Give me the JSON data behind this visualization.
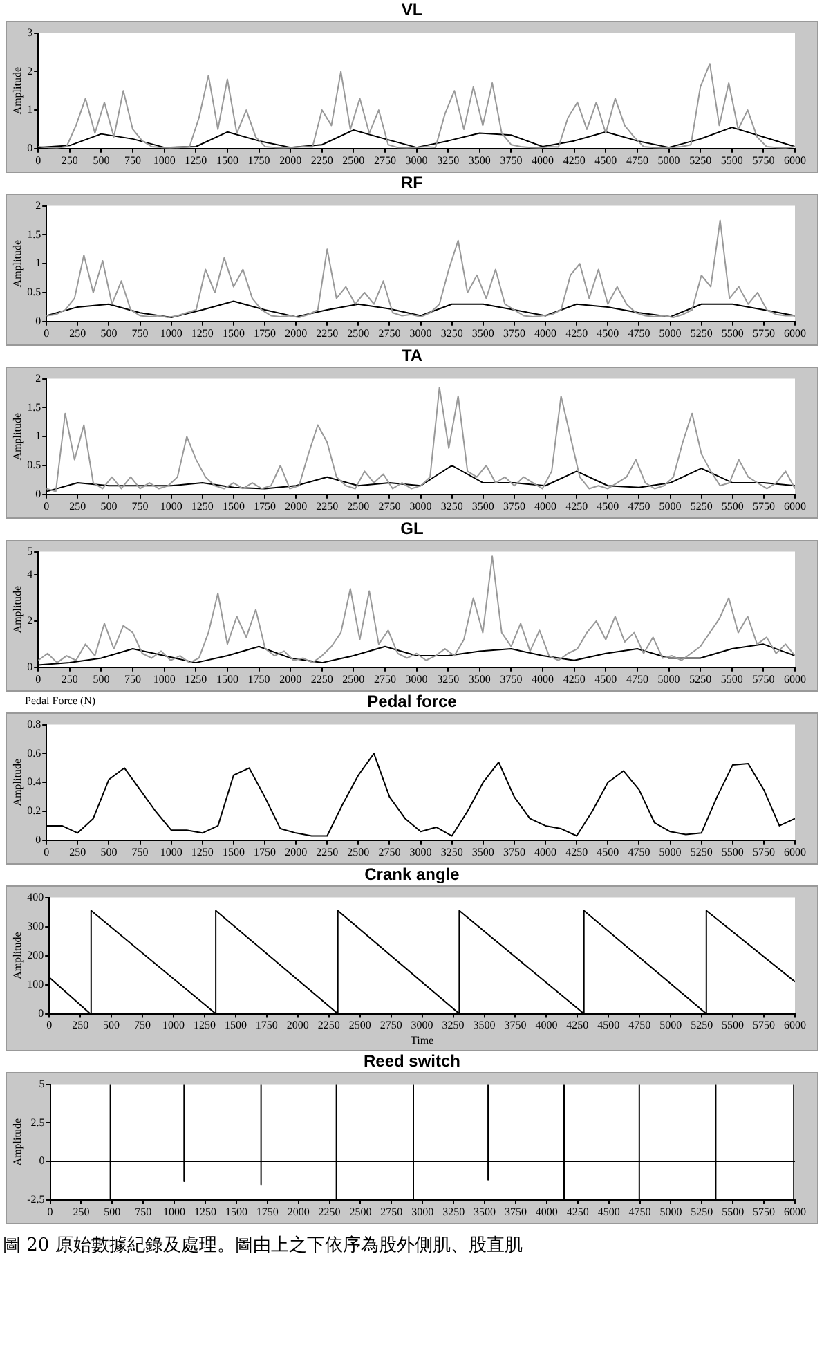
{
  "chart_data": [
    {
      "type": "line",
      "title": "VL",
      "ylabel": "Amplitude",
      "xlim": [
        0,
        6000
      ],
      "xticks": [
        0,
        250,
        500,
        750,
        1000,
        1250,
        1500,
        1750,
        2000,
        2250,
        2500,
        2750,
        3000,
        3250,
        3500,
        3750,
        4000,
        4250,
        4500,
        4750,
        5000,
        5250,
        5500,
        5750,
        6000
      ],
      "ylim": [
        0,
        3
      ],
      "yticks": [
        0,
        1,
        2,
        3
      ],
      "grid": false,
      "legend": false,
      "marker": "none",
      "series": [
        {
          "color": "#999999",
          "x": [
            0,
            75,
            150,
            225,
            300,
            375,
            450,
            525,
            600,
            675,
            750,
            825,
            900,
            975,
            1050,
            1125,
            1200,
            1275,
            1350,
            1425,
            1500,
            1575,
            1650,
            1725,
            1800,
            1875,
            1950,
            2025,
            2100,
            2175,
            2250,
            2325,
            2400,
            2475,
            2550,
            2625,
            2700,
            2775,
            2850,
            2925,
            3000,
            3075,
            3150,
            3225,
            3300,
            3375,
            3450,
            3525,
            3600,
            3675,
            3750,
            3825,
            3900,
            3975,
            4050,
            4125,
            4200,
            4275,
            4350,
            4425,
            4500,
            4575,
            4650,
            4725,
            4800,
            4875,
            4950,
            5025,
            5100,
            5175,
            5250,
            5325,
            5400,
            5475,
            5550,
            5625,
            5700,
            5775,
            5850,
            5925,
            6000
          ],
          "values": [
            0.05,
            0.03,
            0.02,
            0.05,
            0.6,
            1.3,
            0.4,
            1.2,
            0.3,
            1.5,
            0.5,
            0.2,
            0.05,
            0.03,
            0.02,
            0.03,
            0.05,
            0.8,
            1.9,
            0.5,
            1.8,
            0.4,
            1.0,
            0.3,
            0.05,
            0.03,
            0.02,
            0.03,
            0.05,
            0.04,
            1.0,
            0.6,
            2.0,
            0.5,
            1.3,
            0.4,
            1.0,
            0.1,
            0.03,
            0.02,
            0.03,
            0.05,
            0.03,
            0.9,
            1.5,
            0.5,
            1.6,
            0.6,
            1.7,
            0.4,
            0.1,
            0.05,
            0.03,
            0.02,
            0.05,
            0.04,
            0.8,
            1.2,
            0.5,
            1.2,
            0.4,
            1.3,
            0.6,
            0.3,
            0.05,
            0.03,
            0.02,
            0.03,
            0.05,
            0.1,
            1.6,
            2.2,
            0.6,
            1.7,
            0.5,
            1.0,
            0.3,
            0.05,
            0.03,
            0.02,
            0.05
          ]
        },
        {
          "color": "#000000",
          "x": [
            0,
            250,
            500,
            750,
            1000,
            1250,
            1500,
            1750,
            2000,
            2250,
            2500,
            2750,
            3000,
            3250,
            3500,
            3750,
            4000,
            4250,
            4500,
            4750,
            5000,
            5250,
            5500,
            5750,
            6000
          ],
          "values": [
            0.03,
            0.08,
            0.38,
            0.25,
            0.03,
            0.05,
            0.43,
            0.2,
            0.03,
            0.1,
            0.48,
            0.25,
            0.03,
            0.2,
            0.4,
            0.35,
            0.05,
            0.2,
            0.43,
            0.2,
            0.03,
            0.25,
            0.55,
            0.3,
            0.05
          ]
        }
      ]
    },
    {
      "type": "line",
      "title": "RF",
      "ylabel": "Amplitude",
      "xlim": [
        0,
        6000
      ],
      "xticks": [
        0,
        250,
        500,
        750,
        1000,
        1250,
        1500,
        1750,
        2000,
        2250,
        2500,
        2750,
        3000,
        3250,
        3500,
        3750,
        4000,
        4250,
        4500,
        4750,
        5000,
        5250,
        5500,
        5750,
        6000
      ],
      "ylim": [
        0,
        2
      ],
      "yticks": [
        0,
        0.5,
        1,
        1.5,
        2
      ],
      "grid": false,
      "legend": false,
      "marker": "none",
      "series": [
        {
          "color": "#999999",
          "x": [
            0,
            75,
            150,
            225,
            300,
            375,
            450,
            525,
            600,
            675,
            750,
            825,
            900,
            975,
            1050,
            1125,
            1200,
            1275,
            1350,
            1425,
            1500,
            1575,
            1650,
            1725,
            1800,
            1875,
            1950,
            2025,
            2100,
            2175,
            2250,
            2325,
            2400,
            2475,
            2550,
            2625,
            2700,
            2775,
            2850,
            2925,
            3000,
            3075,
            3150,
            3225,
            3300,
            3375,
            3450,
            3525,
            3600,
            3675,
            3750,
            3825,
            3900,
            3975,
            4050,
            4125,
            4200,
            4275,
            4350,
            4425,
            4500,
            4575,
            4650,
            4725,
            4800,
            4875,
            4950,
            5025,
            5100,
            5175,
            5250,
            5325,
            5400,
            5475,
            5550,
            5625,
            5700,
            5775,
            5850,
            5925,
            6000
          ],
          "values": [
            0.1,
            0.12,
            0.2,
            0.4,
            1.15,
            0.5,
            1.05,
            0.3,
            0.7,
            0.2,
            0.1,
            0.08,
            0.1,
            0.07,
            0.1,
            0.15,
            0.2,
            0.9,
            0.5,
            1.1,
            0.6,
            0.9,
            0.4,
            0.2,
            0.1,
            0.08,
            0.1,
            0.07,
            0.12,
            0.2,
            1.25,
            0.4,
            0.6,
            0.3,
            0.5,
            0.3,
            0.7,
            0.15,
            0.1,
            0.12,
            0.08,
            0.15,
            0.3,
            0.9,
            1.4,
            0.5,
            0.8,
            0.4,
            0.9,
            0.3,
            0.2,
            0.1,
            0.08,
            0.1,
            0.12,
            0.2,
            0.8,
            1.0,
            0.4,
            0.9,
            0.3,
            0.6,
            0.3,
            0.15,
            0.1,
            0.08,
            0.1,
            0.07,
            0.12,
            0.2,
            0.8,
            0.6,
            1.75,
            0.4,
            0.6,
            0.3,
            0.5,
            0.2,
            0.12,
            0.1,
            0.1
          ]
        },
        {
          "color": "#000000",
          "x": [
            0,
            250,
            500,
            750,
            1000,
            1250,
            1500,
            1750,
            2000,
            2250,
            2500,
            2750,
            3000,
            3250,
            3500,
            3750,
            4000,
            4250,
            4500,
            4750,
            5000,
            5250,
            5500,
            5750,
            6000
          ],
          "values": [
            0.1,
            0.25,
            0.3,
            0.15,
            0.07,
            0.2,
            0.35,
            0.2,
            0.08,
            0.2,
            0.3,
            0.22,
            0.1,
            0.3,
            0.3,
            0.2,
            0.1,
            0.3,
            0.25,
            0.15,
            0.08,
            0.3,
            0.3,
            0.2,
            0.1
          ]
        }
      ]
    },
    {
      "type": "line",
      "title": "TA",
      "ylabel": "Amplitude",
      "xlim": [
        0,
        6000
      ],
      "xticks": [
        0,
        250,
        500,
        750,
        1000,
        1250,
        1500,
        1750,
        2000,
        2250,
        2500,
        2750,
        3000,
        3250,
        3500,
        3750,
        4000,
        4250,
        4500,
        4750,
        5000,
        5250,
        5500,
        5750,
        6000
      ],
      "ylim": [
        0,
        2
      ],
      "yticks": [
        0,
        0.5,
        1,
        1.5,
        2
      ],
      "grid": false,
      "legend": false,
      "marker": "none",
      "series": [
        {
          "color": "#999999",
          "x": [
            0,
            75,
            150,
            225,
            300,
            375,
            450,
            525,
            600,
            675,
            750,
            825,
            900,
            975,
            1050,
            1125,
            1200,
            1275,
            1350,
            1425,
            1500,
            1575,
            1650,
            1725,
            1800,
            1875,
            1950,
            2025,
            2100,
            2175,
            2250,
            2325,
            2400,
            2475,
            2550,
            2625,
            2700,
            2775,
            2850,
            2925,
            3000,
            3075,
            3150,
            3225,
            3300,
            3375,
            3450,
            3525,
            3600,
            3675,
            3750,
            3825,
            3900,
            3975,
            4050,
            4125,
            4200,
            4275,
            4350,
            4425,
            4500,
            4575,
            4650,
            4725,
            4800,
            4875,
            4950,
            5025,
            5100,
            5175,
            5250,
            5325,
            5400,
            5475,
            5550,
            5625,
            5700,
            5775,
            5850,
            5925,
            6000
          ],
          "values": [
            0.1,
            0.05,
            1.4,
            0.6,
            1.2,
            0.2,
            0.1,
            0.3,
            0.1,
            0.3,
            0.1,
            0.2,
            0.1,
            0.15,
            0.3,
            1.0,
            0.6,
            0.3,
            0.15,
            0.1,
            0.2,
            0.1,
            0.2,
            0.1,
            0.15,
            0.5,
            0.1,
            0.15,
            0.7,
            1.2,
            0.9,
            0.3,
            0.15,
            0.1,
            0.4,
            0.2,
            0.35,
            0.1,
            0.2,
            0.1,
            0.15,
            0.3,
            1.85,
            0.8,
            1.7,
            0.4,
            0.3,
            0.5,
            0.2,
            0.3,
            0.15,
            0.3,
            0.2,
            0.1,
            0.4,
            1.7,
            1.0,
            0.3,
            0.1,
            0.15,
            0.1,
            0.2,
            0.3,
            0.6,
            0.2,
            0.1,
            0.15,
            0.3,
            0.9,
            1.4,
            0.7,
            0.4,
            0.15,
            0.2,
            0.6,
            0.3,
            0.2,
            0.1,
            0.2,
            0.4,
            0.1
          ]
        },
        {
          "color": "#000000",
          "x": [
            0,
            250,
            500,
            750,
            1000,
            1250,
            1500,
            1750,
            2000,
            2250,
            2500,
            2750,
            3000,
            3250,
            3500,
            3750,
            4000,
            4250,
            4500,
            4750,
            5000,
            5250,
            5500,
            5750,
            6000
          ],
          "values": [
            0.05,
            0.2,
            0.15,
            0.15,
            0.15,
            0.2,
            0.12,
            0.1,
            0.15,
            0.3,
            0.15,
            0.2,
            0.15,
            0.5,
            0.2,
            0.2,
            0.15,
            0.4,
            0.15,
            0.12,
            0.2,
            0.45,
            0.2,
            0.2,
            0.15
          ]
        }
      ]
    },
    {
      "type": "line",
      "title": "GL",
      "ylabel": "Amplitude",
      "xlim": [
        0,
        6000
      ],
      "xticks": [
        0,
        250,
        500,
        750,
        1000,
        1250,
        1500,
        1750,
        2000,
        2250,
        2500,
        2750,
        3000,
        3250,
        3500,
        3750,
        4000,
        4250,
        4500,
        4750,
        5000,
        5250,
        5500,
        5750,
        6000
      ],
      "ylim": [
        0,
        5
      ],
      "yticks": [
        0,
        2,
        4,
        5
      ],
      "grid": false,
      "legend": false,
      "marker": "none",
      "series": [
        {
          "color": "#999999",
          "x": [
            0,
            75,
            150,
            225,
            300,
            375,
            450,
            525,
            600,
            675,
            750,
            825,
            900,
            975,
            1050,
            1125,
            1200,
            1275,
            1350,
            1425,
            1500,
            1575,
            1650,
            1725,
            1800,
            1875,
            1950,
            2025,
            2100,
            2175,
            2250,
            2325,
            2400,
            2475,
            2550,
            2625,
            2700,
            2775,
            2850,
            2925,
            3000,
            3075,
            3150,
            3225,
            3300,
            3375,
            3450,
            3525,
            3600,
            3675,
            3750,
            3825,
            3900,
            3975,
            4050,
            4125,
            4200,
            4275,
            4350,
            4425,
            4500,
            4575,
            4650,
            4725,
            4800,
            4875,
            4950,
            5025,
            5100,
            5175,
            5250,
            5325,
            5400,
            5475,
            5550,
            5625,
            5700,
            5775,
            5850,
            5925,
            6000
          ],
          "values": [
            0.3,
            0.6,
            0.2,
            0.5,
            0.3,
            1.0,
            0.5,
            1.9,
            0.8,
            1.8,
            1.5,
            0.6,
            0.4,
            0.7,
            0.3,
            0.5,
            0.2,
            0.4,
            1.5,
            3.2,
            1.0,
            2.2,
            1.3,
            2.5,
            0.8,
            0.5,
            0.7,
            0.3,
            0.4,
            0.2,
            0.5,
            0.9,
            1.5,
            3.4,
            1.2,
            3.3,
            1.0,
            1.6,
            0.6,
            0.4,
            0.6,
            0.3,
            0.5,
            0.8,
            0.5,
            1.2,
            3.0,
            1.5,
            4.8,
            1.5,
            0.9,
            1.9,
            0.7,
            1.6,
            0.5,
            0.3,
            0.6,
            0.8,
            1.5,
            2.0,
            1.2,
            2.2,
            1.1,
            1.5,
            0.6,
            1.3,
            0.4,
            0.5,
            0.3,
            0.6,
            0.9,
            1.5,
            2.1,
            3.0,
            1.5,
            2.2,
            1.0,
            1.3,
            0.6,
            1.0,
            0.5
          ]
        },
        {
          "color": "#000000",
          "x": [
            0,
            250,
            500,
            750,
            1000,
            1250,
            1500,
            1750,
            2000,
            2250,
            2500,
            2750,
            3000,
            3250,
            3500,
            3750,
            4000,
            4250,
            4500,
            4750,
            5000,
            5250,
            5500,
            5750,
            6000
          ],
          "values": [
            0.1,
            0.2,
            0.4,
            0.8,
            0.5,
            0.2,
            0.5,
            0.9,
            0.4,
            0.2,
            0.5,
            0.9,
            0.5,
            0.5,
            0.7,
            0.8,
            0.5,
            0.3,
            0.6,
            0.8,
            0.4,
            0.4,
            0.8,
            1.0,
            0.5
          ]
        }
      ]
    },
    {
      "type": "line",
      "title": "Pedal force",
      "ylabel": "Amplitude",
      "annotations": [
        "Pedal Force (N)"
      ],
      "xlim": [
        0,
        6000
      ],
      "xticks": [
        0,
        250,
        500,
        750,
        1000,
        1250,
        1500,
        1750,
        2000,
        2250,
        2500,
        2750,
        3000,
        3250,
        3500,
        3750,
        4000,
        4250,
        4500,
        4750,
        5000,
        5250,
        5500,
        5750,
        6000
      ],
      "ylim": [
        0,
        0.8
      ],
      "yticks": [
        0,
        0.2,
        0.4,
        0.6,
        0.8
      ],
      "grid": false,
      "legend": false,
      "marker": "none",
      "series": [
        {
          "color": "#000000",
          "x": [
            0,
            125,
            250,
            375,
            500,
            625,
            750,
            875,
            1000,
            1125,
            1250,
            1375,
            1500,
            1625,
            1750,
            1875,
            2000,
            2125,
            2250,
            2375,
            2500,
            2625,
            2750,
            2875,
            3000,
            3125,
            3250,
            3375,
            3500,
            3625,
            3750,
            3875,
            4000,
            4125,
            4250,
            4375,
            4500,
            4625,
            4750,
            4875,
            5000,
            5125,
            5250,
            5375,
            5500,
            5625,
            5750,
            5875,
            6000
          ],
          "values": [
            0.1,
            0.1,
            0.05,
            0.15,
            0.42,
            0.5,
            0.35,
            0.2,
            0.07,
            0.07,
            0.05,
            0.1,
            0.45,
            0.5,
            0.3,
            0.08,
            0.05,
            0.03,
            0.03,
            0.25,
            0.45,
            0.6,
            0.3,
            0.15,
            0.06,
            0.09,
            0.03,
            0.2,
            0.4,
            0.54,
            0.3,
            0.15,
            0.1,
            0.08,
            0.03,
            0.2,
            0.4,
            0.48,
            0.35,
            0.12,
            0.06,
            0.04,
            0.05,
            0.3,
            0.52,
            0.53,
            0.35,
            0.1,
            0.15
          ]
        }
      ]
    },
    {
      "type": "line",
      "title": "Crank angle",
      "ylabel": "Amplitude",
      "xlabel": "Time",
      "xlim": [
        0,
        6000
      ],
      "xticks": [
        0,
        250,
        500,
        750,
        1000,
        1250,
        1500,
        1750,
        2000,
        2250,
        2500,
        2750,
        3000,
        3250,
        3500,
        3750,
        4000,
        4250,
        4500,
        4750,
        5000,
        5250,
        5500,
        5750,
        6000
      ],
      "ylim": [
        0,
        400
      ],
      "yticks": [
        0,
        100,
        200,
        300,
        400
      ],
      "grid": false,
      "legend": false,
      "marker": "none",
      "series": [
        {
          "color": "#000000",
          "x": [
            0,
            330,
            337,
            337,
            1340,
            1340,
            2322,
            2322,
            3299,
            3299,
            4302,
            4302,
            5287,
            5287,
            6000
          ],
          "values": [
            125,
            0,
            0,
            355,
            0,
            355,
            0,
            355,
            0,
            355,
            0,
            355,
            0,
            355,
            110
          ]
        }
      ]
    },
    {
      "type": "line",
      "title": "Reed switch",
      "ylabel": "Amplitude",
      "annotations": [
        "圖 20 原始數據紀錄及處理。圖由上之下依序為股外側肌、股直肌"
      ],
      "xlim": [
        0,
        6000
      ],
      "xticks": [
        0,
        250,
        500,
        750,
        1000,
        1250,
        1500,
        1750,
        2000,
        2250,
        2500,
        2750,
        3000,
        3250,
        3500,
        3750,
        4000,
        4250,
        4500,
        4750,
        5000,
        5250,
        5500,
        5750,
        6000
      ],
      "ylim": [
        -2.5,
        5
      ],
      "yticks": [
        -2.5,
        0,
        2.5,
        5
      ],
      "grid": false,
      "legend": false,
      "marker": "none",
      "series": [
        {
          "color": "#000000",
          "x": [
            0,
            485,
            485,
            485,
            485,
            1079,
            1079,
            1079,
            1079,
            1699,
            1699,
            1699,
            1699,
            2306,
            2306,
            2306,
            2306,
            2926,
            2926,
            2926,
            2926,
            3528,
            3528,
            3528,
            3528,
            4140,
            4140,
            4140,
            4140,
            4746,
            4746,
            4746,
            4746,
            5362,
            5362,
            5362,
            5362,
            5990,
            5990,
            5990,
            5990,
            6000
          ],
          "values": [
            0,
            0,
            5,
            -2.5,
            0,
            0,
            5,
            -1.3,
            0,
            0,
            5,
            -1.5,
            0,
            0,
            5,
            -2.5,
            0,
            0,
            5,
            -2.5,
            0,
            0,
            5,
            -1.2,
            0,
            0,
            5,
            -2.5,
            0,
            0,
            5,
            -2.5,
            0,
            0,
            5,
            -2.5,
            0,
            0,
            5,
            -2.5,
            0,
            0
          ]
        }
      ]
    }
  ]
}
